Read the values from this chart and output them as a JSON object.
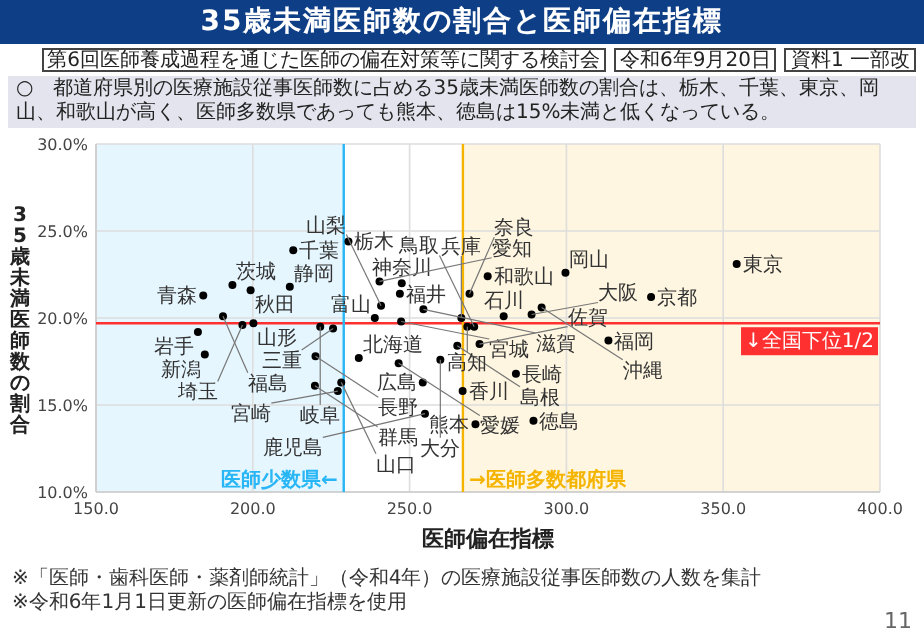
{
  "chart_data": {
    "type": "scatter",
    "title": "35歳未満医師数の割合と医師偏在指標",
    "subtitle": "○　都道府県別の医療施設従事医師数に占める35歳未満医師数の割合は、栃木、千葉、東京、岡山、和歌山が高く、医師多数県であっても熊本、徳島は15%未満と低くなっている。",
    "xlabel": "医師偏在指標",
    "ylabel": "35歳未満医師数の割合",
    "x": [
      233.8,
      184.2,
      182.5,
      247.3,
      199.3,
      200.2,
      190.5,
      193.5,
      230.5,
      219.8,
      196.7,
      212.9,
      354.3,
      247.5,
      184.7,
      238.9,
      280.0,
      246.9,
      240.9,
      220.0,
      221.5,
      211.8,
      240.4,
      225.6,
      254.4,
      327.0,
      288.9,
      266.5,
      269.1,
      274.9,
      270.6,
      265.2,
      299.7,
      254.2,
      228.2,
      289.5,
      266.9,
      246.5,
      268.4,
      313.4,
      272.3,
      283.9,
      271.0,
      259.8,
      227.1,
      254.9,
      292.1
    ],
    "values": [
      17.7,
      21.3,
      19.2,
      19.8,
      21.6,
      19.7,
      20.1,
      21.9,
      24.4,
      16.1,
      19.6,
      23.9,
      23.1,
      22.0,
      17.9,
      20.0,
      20.1,
      21.4,
      20.7,
      17.8,
      19.5,
      21.8,
      22.1,
      19.4,
      20.5,
      21.2,
      20.2,
      20.0,
      21.4,
      22.4,
      19.5,
      18.4,
      22.6,
      16.3,
      16.3,
      14.1,
      15.8,
      17.4,
      19.5,
      18.7,
      18.5,
      16.8,
      13.9,
      17.6,
      15.8,
      14.5,
      20.6
    ],
    "color": "#000000",
    "marker": "circle",
    "xlim": [
      150,
      400
    ],
    "xticks": [
      {
        "value": 150,
        "label": "150.0"
      },
      {
        "value": 200,
        "label": "200.0"
      },
      {
        "value": 250,
        "label": "250.0"
      },
      {
        "value": 300,
        "label": "300.0"
      },
      {
        "value": 350,
        "label": "350.0"
      },
      {
        "value": 400,
        "label": "400.0"
      }
    ],
    "ylim": [
      10,
      30
    ],
    "yticks": [
      {
        "value": 10,
        "label": "10.0%"
      },
      {
        "value": 15,
        "label": "15.0%"
      },
      {
        "value": 20,
        "label": "20.0%"
      },
      {
        "value": 25,
        "label": "25.0%"
      },
      {
        "value": 30,
        "label": "30.0%"
      }
    ],
    "grid": true,
    "bands": [
      {
        "axis": "x",
        "from": 150,
        "to": 229,
        "label": "医師少数県←",
        "color": "#29b6f6"
      },
      {
        "axis": "x",
        "from": 267,
        "to": 400,
        "label": "→医師多数都府県",
        "color": "#f5b400"
      }
    ],
    "ref_lines": [
      {
        "axis": "y",
        "value": 19.7,
        "label": "↓全国下位1/2",
        "color": "#ff3030"
      },
      {
        "axis": "x",
        "value": 229,
        "color": "#29b6f6"
      },
      {
        "axis": "x",
        "value": 267,
        "color": "#f5b400"
      }
    ],
    "annotations": [
      "第6回医師養成過程を通じた医師の偏在対策等に関する検討会",
      "令和6年9月20日",
      "資料1 一部改",
      "※「医師・歯科医師・薬剤師統計」（令和4年）の医療施設従事医師数の人数を集計",
      "※令和6年1月1日更新の医師偏在指標を使用",
      "11",
      {
        "text": "北海道",
        "x": 233.8,
        "y": 17.7
      },
      {
        "text": "青森",
        "x": 184.2,
        "y": 21.3
      },
      {
        "text": "岩手",
        "x": 182.5,
        "y": 19.2
      },
      {
        "text": "宮城",
        "x": 247.3,
        "y": 19.8
      },
      {
        "text": "秋田",
        "x": 199.3,
        "y": 21.6
      },
      {
        "text": "山形",
        "x": 200.2,
        "y": 19.7
      },
      {
        "text": "福島",
        "x": 190.5,
        "y": 20.1
      },
      {
        "text": "茨城",
        "x": 193.5,
        "y": 21.9
      },
      {
        "text": "栃木",
        "x": 230.5,
        "y": 24.4
      },
      {
        "text": "群馬",
        "x": 219.8,
        "y": 16.1
      },
      {
        "text": "埼玉",
        "x": 196.7,
        "y": 19.6
      },
      {
        "text": "千葉",
        "x": 212.9,
        "y": 23.9
      },
      {
        "text": "東京",
        "x": 354.3,
        "y": 23.1
      },
      {
        "text": "神奈川",
        "x": 247.5,
        "y": 22.0
      },
      {
        "text": "新潟",
        "x": 184.7,
        "y": 17.9
      },
      {
        "text": "富山",
        "x": 238.9,
        "y": 20.0
      },
      {
        "text": "石川",
        "x": 280.0,
        "y": 20.1
      },
      {
        "text": "福井",
        "x": 246.9,
        "y": 21.4
      },
      {
        "text": "山梨",
        "x": 240.9,
        "y": 20.7
      },
      {
        "text": "長野",
        "x": 220.0,
        "y": 17.8
      },
      {
        "text": "岐阜",
        "x": 221.5,
        "y": 19.5
      },
      {
        "text": "静岡",
        "x": 211.8,
        "y": 21.8
      },
      {
        "text": "愛知",
        "x": 240.4,
        "y": 22.1
      },
      {
        "text": "三重",
        "x": 225.6,
        "y": 19.4
      },
      {
        "text": "滋賀",
        "x": 254.4,
        "y": 20.5
      },
      {
        "text": "京都",
        "x": 327.0,
        "y": 21.2
      },
      {
        "text": "大阪",
        "x": 288.9,
        "y": 20.2
      },
      {
        "text": "兵庫",
        "x": 266.5,
        "y": 20.0
      },
      {
        "text": "奈良",
        "x": 269.1,
        "y": 21.4
      },
      {
        "text": "和歌山",
        "x": 274.9,
        "y": 22.4
      },
      {
        "text": "鳥取",
        "x": 270.6,
        "y": 19.5
      },
      {
        "text": "島根",
        "x": 265.2,
        "y": 18.4
      },
      {
        "text": "岡山",
        "x": 299.7,
        "y": 22.6
      },
      {
        "text": "広島",
        "x": 254.2,
        "y": 16.3
      },
      {
        "text": "山口",
        "x": 228.2,
        "y": 16.3
      },
      {
        "text": "徳島",
        "x": 289.5,
        "y": 14.1
      },
      {
        "text": "香川",
        "x": 266.9,
        "y": 15.8
      },
      {
        "text": "愛媛",
        "x": 246.5,
        "y": 17.4
      },
      {
        "text": "高知",
        "x": 268.4,
        "y": 19.5
      },
      {
        "text": "福岡",
        "x": 313.4,
        "y": 18.7
      },
      {
        "text": "佐賀",
        "x": 272.3,
        "y": 18.5
      },
      {
        "text": "長崎",
        "x": 283.9,
        "y": 16.8
      },
      {
        "text": "熊本",
        "x": 271.0,
        "y": 13.9
      },
      {
        "text": "大分",
        "x": 259.8,
        "y": 17.6
      },
      {
        "text": "宮崎",
        "x": 227.1,
        "y": 15.8
      },
      {
        "text": "鹿児島",
        "x": 254.9,
        "y": 14.5
      },
      {
        "text": "沖縄",
        "x": 292.1,
        "y": 20.6
      }
    ]
  }
}
